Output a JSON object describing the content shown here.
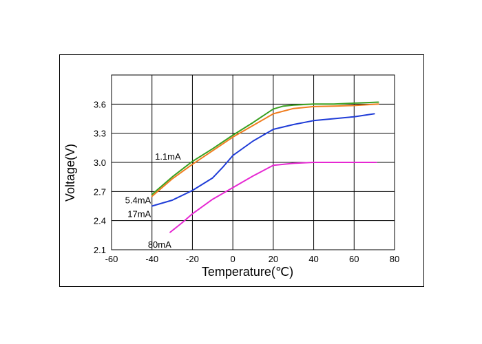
{
  "chart_data": {
    "type": "line",
    "xlabel": "Temperature(℃)",
    "ylabel": "Voltage(V)",
    "xlim": [
      -60,
      80
    ],
    "ylim": [
      2.1,
      3.6
    ],
    "xticks": [
      "-60",
      "-40",
      "-20",
      "0",
      "20",
      "40",
      "60",
      "80"
    ],
    "yticks": [
      "2.1",
      "2.4",
      "2.7",
      "3.0",
      "3.3",
      "3.6"
    ],
    "grid": true,
    "series": [
      {
        "name": "1.1mA",
        "color": "#3aa021",
        "x": [
          -40,
          -30,
          -20,
          -10,
          0,
          10,
          20,
          25,
          30,
          40,
          50,
          60,
          72
        ],
        "y": [
          2.67,
          2.85,
          3.01,
          3.14,
          3.28,
          3.41,
          3.55,
          3.58,
          3.59,
          3.6,
          3.6,
          3.61,
          3.62
        ]
      },
      {
        "name": "5.4mA",
        "color": "#f07d1e",
        "x": [
          -40,
          -30,
          -20,
          -10,
          0,
          10,
          20,
          30,
          40,
          50,
          60,
          72
        ],
        "y": [
          2.65,
          2.83,
          2.98,
          3.12,
          3.26,
          3.38,
          3.5,
          3.555,
          3.575,
          3.58,
          3.585,
          3.6
        ]
      },
      {
        "name": "17mA",
        "color": "#1f3cd7",
        "x": [
          -40,
          -30,
          -20,
          -10,
          -5,
          0,
          10,
          20,
          30,
          40,
          50,
          60,
          70
        ],
        "y": [
          2.55,
          2.61,
          2.71,
          2.84,
          2.95,
          3.07,
          3.22,
          3.34,
          3.39,
          3.43,
          3.45,
          3.47,
          3.5
        ]
      },
      {
        "name": "80mA",
        "color": "#e628d2",
        "x": [
          -31,
          -25,
          -20,
          -10,
          0,
          10,
          20,
          30,
          40,
          50,
          60,
          71
        ],
        "y": [
          2.28,
          2.38,
          2.47,
          2.62,
          2.74,
          2.86,
          2.97,
          2.99,
          3.0,
          3.0,
          3.0,
          3.0
        ]
      }
    ],
    "annotations": [
      {
        "text": "1.1mA",
        "series": "1.1mA"
      },
      {
        "text": "5.4mA",
        "series": "5.4mA"
      },
      {
        "text": "17mA",
        "series": "17mA"
      },
      {
        "text": "80mA",
        "series": "80mA"
      }
    ]
  }
}
